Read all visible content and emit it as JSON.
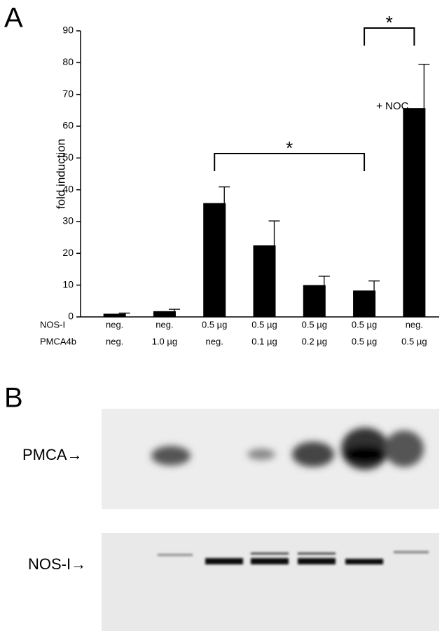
{
  "chart_data": {
    "type": "bar",
    "panel_labels": [
      "A",
      "B"
    ],
    "ylabel": "fold induction",
    "category_rows": [
      "NOS-I",
      "PMCA4b"
    ],
    "categories": [
      [
        "neg.",
        "neg."
      ],
      [
        "neg.",
        "1.0 µg"
      ],
      [
        "0.5 µg",
        "neg."
      ],
      [
        "0.5 µg",
        "0.1 µg"
      ],
      [
        "0.5 µg",
        "0.2 µg"
      ],
      [
        "0.5 µg",
        "0.5 µg"
      ],
      [
        "neg.",
        "0.5 µg"
      ]
    ],
    "values": [
      1.0,
      1.8,
      35.8,
      22.5,
      10.0,
      8.3,
      65.7
    ],
    "errors": [
      0.2,
      0.6,
      5.1,
      7.7,
      2.8,
      3.0,
      13.8
    ],
    "color": "#000000",
    "ylim": [
      0,
      90
    ],
    "yticks": [
      0,
      10,
      20,
      30,
      40,
      50,
      60,
      70,
      80,
      90
    ],
    "annotations": [
      "*",
      "*",
      "+ NOC"
    ],
    "blot_labels": [
      "PMCA→",
      "NOS-I→"
    ]
  }
}
